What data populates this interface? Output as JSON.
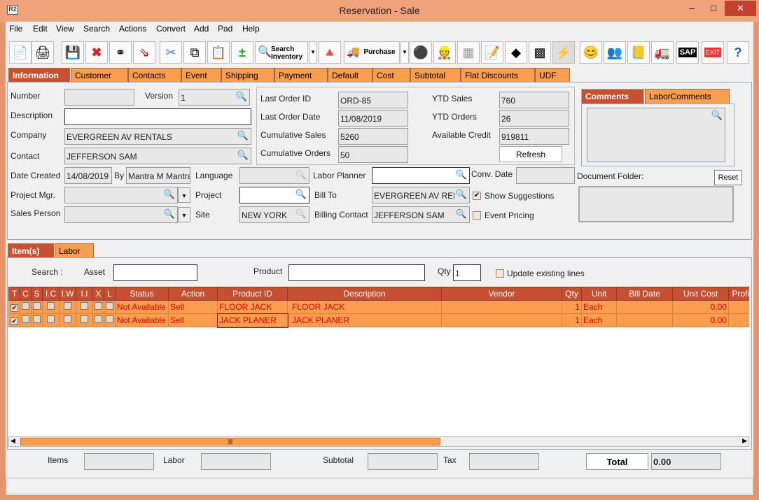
{
  "window": {
    "title": "Reservation - Sale",
    "icon": "R2"
  },
  "menu": [
    "File",
    "Edit",
    "View",
    "Search",
    "Actions",
    "Convert",
    "Add",
    "Pad",
    "Help"
  ],
  "toolbar": {
    "search_inventory": "Search Inventory",
    "purchase": "Purchase",
    "sap": "SAP",
    "exit": "EXIT"
  },
  "tabs": [
    "Information",
    "Customer",
    "Contacts",
    "Event",
    "Shipping",
    "Payment",
    "Default",
    "Cost",
    "Subtotal",
    "Flat Discounts",
    "UDF"
  ],
  "info": {
    "number_label": "Number",
    "number": "",
    "version_label": "Version",
    "version": "1",
    "description_label": "Description",
    "description": "",
    "company_label": "Company",
    "company": "EVERGREEN AV RENTALS",
    "contact_label": "Contact",
    "contact": "JEFFERSON SAM",
    "last_order_id_label": "Last Order ID",
    "last_order_id": "ORD-85",
    "last_order_date_label": "Last Order Date",
    "last_order_date": "11/08/2019",
    "cumulative_sales_label": "Cumulative Sales",
    "cumulative_sales": "5260",
    "cumulative_orders_label": "Cumulative Orders",
    "cumulative_orders": "50",
    "ytd_sales_label": "YTD Sales",
    "ytd_sales": "760",
    "ytd_orders_label": "YTD Orders",
    "ytd_orders": "26",
    "available_credit_label": "Available Credit",
    "available_credit": "919811",
    "refresh": "Refresh",
    "comments_tabs": [
      "Comments",
      "LaborComments"
    ],
    "date_created_label": "Date Created",
    "date_created": "14/08/2019",
    "by_label": "By",
    "by": "Mantra M Mantra",
    "language_label": "Language",
    "language": "",
    "labor_planner_label": "Labor Planner",
    "labor_planner": "",
    "conv_date_label": "Conv. Date",
    "conv_date": "",
    "document_folder_label": "Document Folder:",
    "reset": "Reset",
    "project_mgr_label": "Project Mgr.",
    "project_mgr": "",
    "project_label": "Project",
    "project": "",
    "bill_to_label": "Bill To",
    "bill_to": "EVERGREEN AV RENTALS",
    "show_suggestions": "Show Suggestions",
    "show_suggestions_checked": true,
    "sales_person_label": "Sales Person",
    "sales_person": "",
    "site_label": "Site",
    "site": "NEW YORK",
    "billing_contact_label": "Billing Contact",
    "billing_contact": "JEFFERSON SAM",
    "event_pricing": "Event Pricing",
    "event_pricing_checked": false
  },
  "lower_tabs": [
    "Item(s)",
    "Labor"
  ],
  "search": {
    "label": "Search :",
    "asset_label": "Asset",
    "asset": "",
    "product_label": "Product",
    "product": "",
    "qty_label": "Qty",
    "qty": "1",
    "update_existing": "Update existing lines"
  },
  "grid": {
    "columns": [
      "T",
      "C",
      "S",
      "I.C",
      "I.W",
      "I.I",
      "X",
      "L",
      "Status",
      "Action",
      "Product ID",
      "Description",
      "Vendor",
      "Qty",
      "Unit",
      "Bill Date",
      "Unit Cost",
      "Profit %"
    ],
    "rows": [
      {
        "T": true,
        "status": "Not Available",
        "action": "Sell",
        "product_id": "FLOOR JACK",
        "description": "FLOOR JACK",
        "vendor": "",
        "qty": "1",
        "unit": "Each",
        "bill_date": "",
        "unit_cost": "0.00",
        "profit": ""
      },
      {
        "T": true,
        "status": "Not Available",
        "action": "Sell",
        "product_id": "JACK PLANER",
        "description": "JACK PLANER",
        "vendor": "",
        "qty": "1",
        "unit": "Each",
        "bill_date": "",
        "unit_cost": "0.00",
        "profit": ""
      }
    ]
  },
  "footer": {
    "items_label": "Items",
    "items": "",
    "labor_label": "Labor",
    "labor": "",
    "subtotal_label": "Subtotal",
    "subtotal": "",
    "tax_label": "Tax",
    "tax": "",
    "total_label": "Total",
    "total": "0.00"
  }
}
